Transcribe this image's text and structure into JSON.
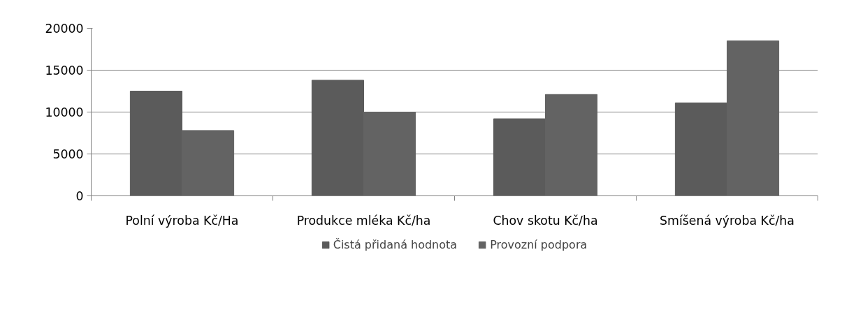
{
  "chart_data": {
    "type": "bar",
    "categories": [
      "Polní výroba Kč/Ha",
      "Produkce mléka Kč/ha",
      "Chov skotu Kč/ha",
      "Smíšená výroba Kč/ha"
    ],
    "series": [
      {
        "name": "Čistá přidaná hodnota",
        "color": "#5b5b5b",
        "values": [
          12500,
          13800,
          9200,
          11100
        ]
      },
      {
        "name": "Provozní podpora",
        "color": "#636363",
        "values": [
          7800,
          10000,
          12100,
          18500
        ]
      }
    ],
    "ylim": [
      0,
      20000
    ],
    "yticks": [
      0,
      5000,
      10000,
      15000,
      20000
    ],
    "grid": "y",
    "legend": "bottom"
  }
}
